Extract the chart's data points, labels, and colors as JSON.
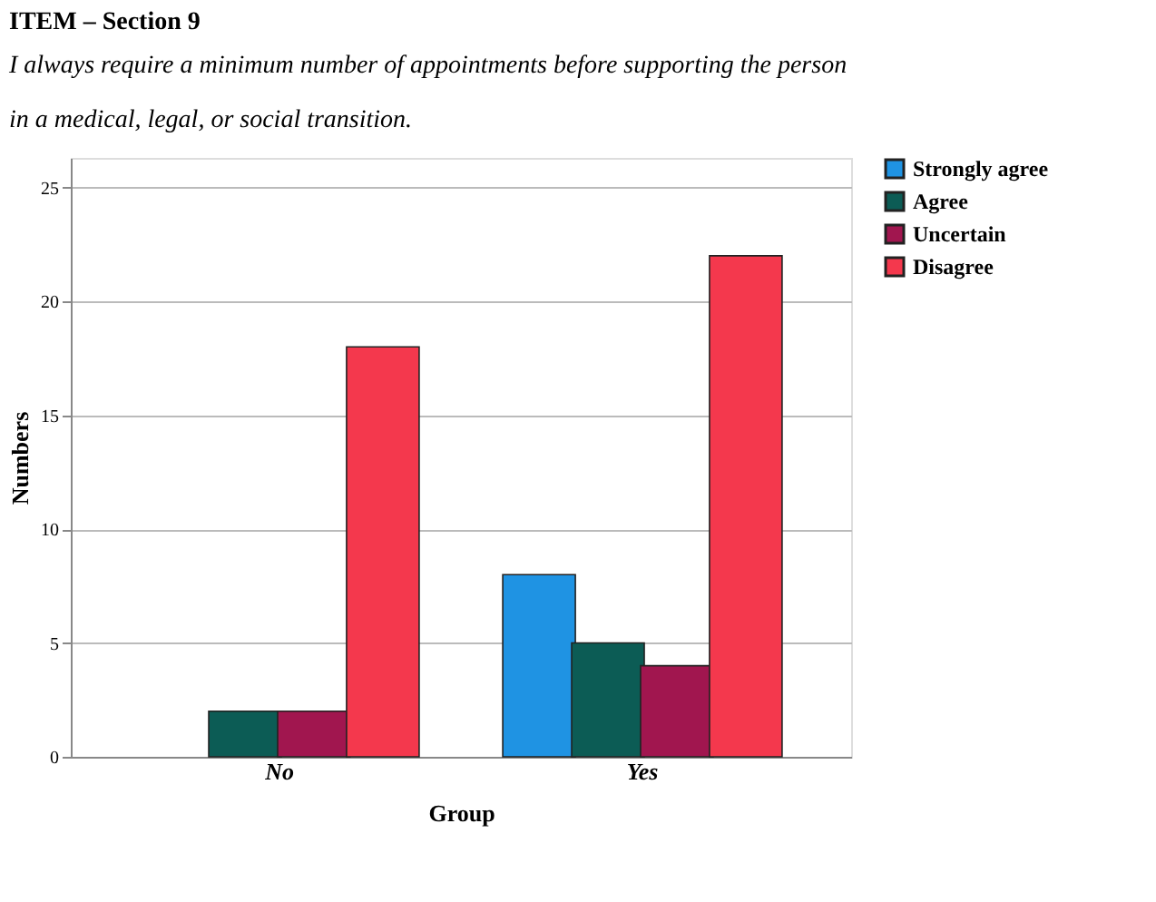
{
  "chart_data": {
    "type": "bar",
    "title": "ITEM – Section 9",
    "subtitle": [
      "I always require a minimum number of appointments before supporting the person",
      "in a medical, legal, or social transition."
    ],
    "xlabel": "Group",
    "ylabel": "Numbers",
    "categories": [
      "No",
      "Yes"
    ],
    "series": [
      {
        "name": "Strongly agree",
        "color": "#1f93e3",
        "values": [
          null,
          8
        ]
      },
      {
        "name": "Agree",
        "color": "#0c5c55",
        "values": [
          2,
          5
        ]
      },
      {
        "name": "Uncertain",
        "color": "#a1164f",
        "values": [
          2,
          4
        ]
      },
      {
        "name": "Disagree",
        "color": "#f4384d",
        "values": [
          18,
          22
        ]
      }
    ],
    "ylim": [
      0,
      26.3
    ],
    "yticks": [
      0,
      5,
      10,
      15,
      20,
      25
    ],
    "grid": "y",
    "legend": "right"
  }
}
